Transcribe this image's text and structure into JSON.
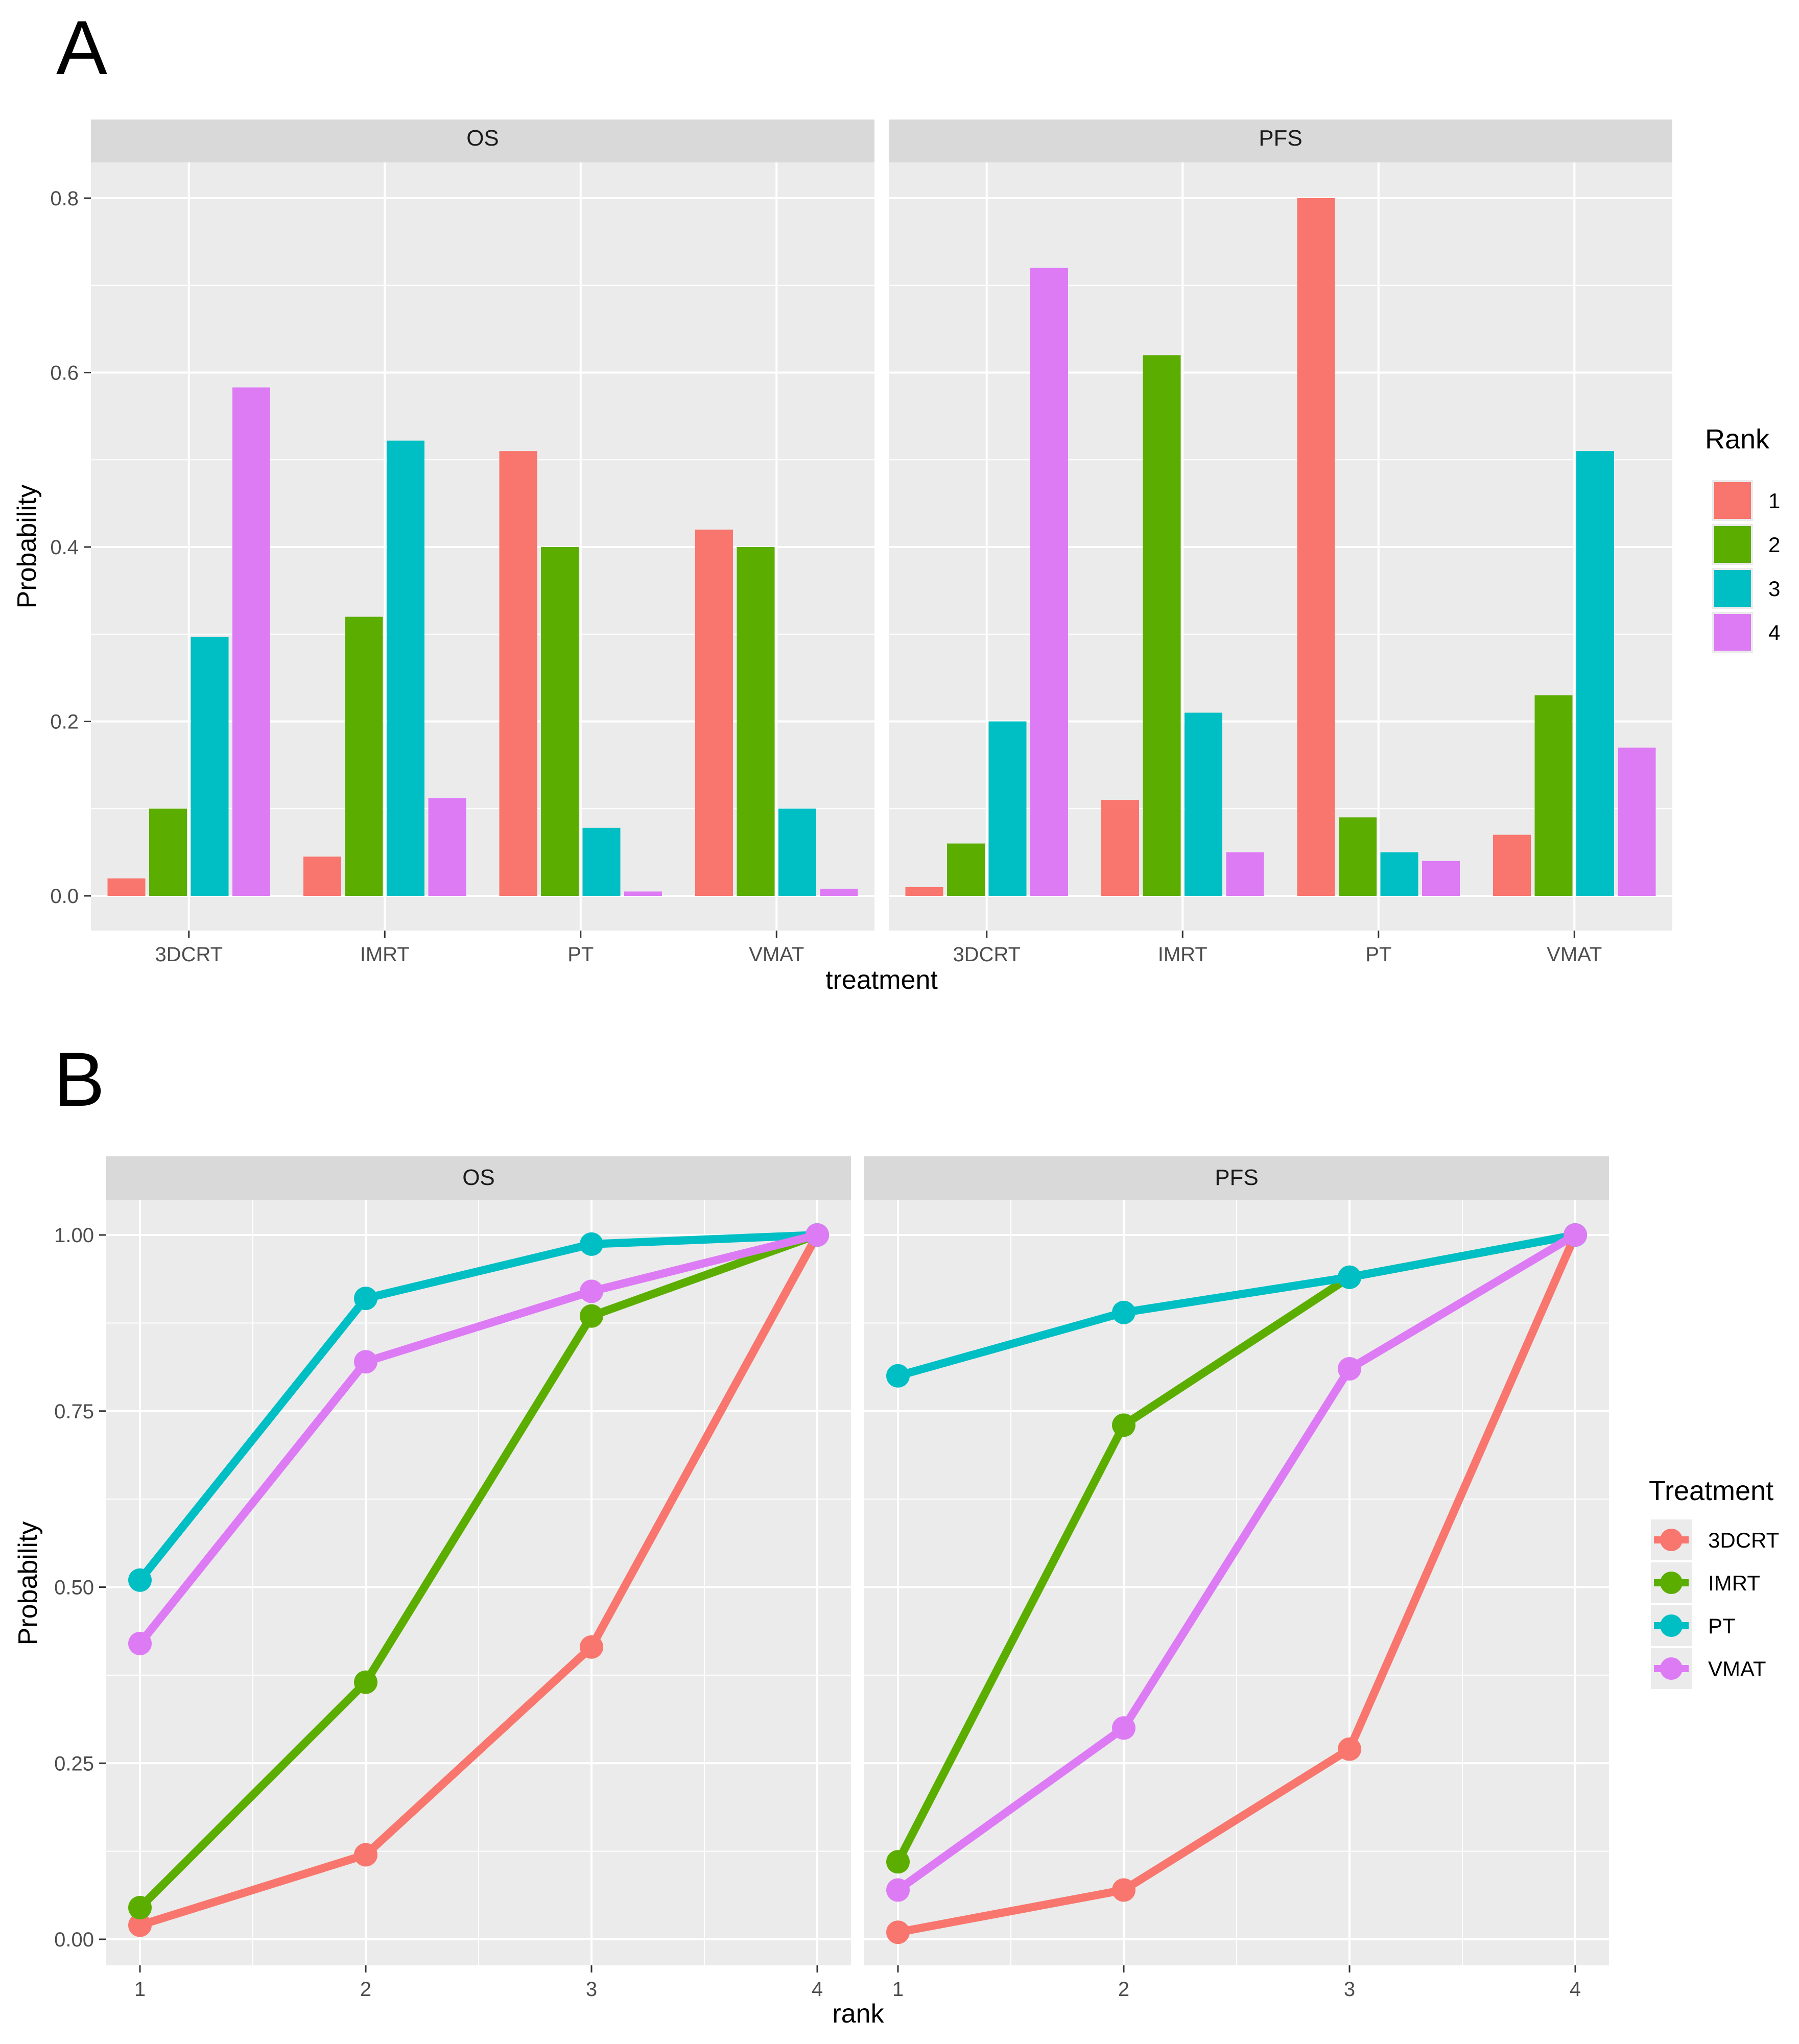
{
  "panels": {
    "A": {
      "letter": "A"
    },
    "B": {
      "letter": "B"
    }
  },
  "colors": {
    "rank_1": "#F8766D",
    "rank_2": "#5BAE00",
    "rank_3": "#00BFC4",
    "rank_4": "#DD7BF5",
    "3DCRT": "#F8766D",
    "IMRT": "#5BAE00",
    "PT": "#00BFC4",
    "VMAT": "#DD7BF5",
    "panel_bg": "#EBEBEB",
    "strip_bg": "#D9D9D9",
    "grid": "#FFFFFF"
  },
  "chart_data": [
    {
      "type": "bar",
      "panel": "A",
      "facets": [
        "OS",
        "PFS"
      ],
      "categories": [
        "3DCRT",
        "IMRT",
        "PT",
        "VMAT"
      ],
      "xlabel": "treatment",
      "ylabel": "Probability",
      "ylim": [
        0,
        0.84
      ],
      "yticks": [
        0.0,
        0.2,
        0.4,
        0.6,
        0.8
      ],
      "ytick_labels": [
        "0.0",
        "0.2",
        "0.4",
        "0.6",
        "0.8"
      ],
      "legend": {
        "title": "Rank",
        "labels": [
          "1",
          "2",
          "3",
          "4"
        ],
        "position": "right"
      },
      "series": {
        "OS": [
          {
            "name": "1",
            "values": [
              0.02,
              0.045,
              0.51,
              0.42
            ]
          },
          {
            "name": "2",
            "values": [
              0.1,
              0.32,
              0.4,
              0.4
            ]
          },
          {
            "name": "3",
            "values": [
              0.297,
              0.522,
              0.078,
              0.1
            ]
          },
          {
            "name": "4",
            "values": [
              0.583,
              0.112,
              0.005,
              0.008
            ]
          }
        ],
        "PFS": [
          {
            "name": "1",
            "values": [
              0.01,
              0.11,
              0.8,
              0.07
            ]
          },
          {
            "name": "2",
            "values": [
              0.06,
              0.62,
              0.09,
              0.23
            ]
          },
          {
            "name": "3",
            "values": [
              0.2,
              0.21,
              0.05,
              0.51
            ]
          },
          {
            "name": "4",
            "values": [
              0.72,
              0.05,
              0.04,
              0.17
            ]
          }
        ]
      }
    },
    {
      "type": "line",
      "panel": "B",
      "facets": [
        "OS",
        "PFS"
      ],
      "x": [
        1,
        2,
        3,
        4
      ],
      "xtick_labels": [
        "1",
        "2",
        "3",
        "4"
      ],
      "xlabel": "rank",
      "ylabel": "Probability",
      "ylim": [
        -0.04,
        1.05
      ],
      "yticks": [
        0.0,
        0.25,
        0.5,
        0.75,
        1.0
      ],
      "ytick_labels": [
        "0.00",
        "0.25",
        "0.50",
        "0.75",
        "1.00"
      ],
      "legend": {
        "title": "Treatment",
        "labels": [
          "3DCRT",
          "IMRT",
          "PT",
          "VMAT"
        ],
        "position": "right"
      },
      "series": {
        "OS": [
          {
            "name": "3DCRT",
            "values": [
              0.02,
              0.12,
              0.415,
              1.0
            ]
          },
          {
            "name": "IMRT",
            "values": [
              0.045,
              0.365,
              0.885,
              1.0
            ]
          },
          {
            "name": "PT",
            "values": [
              0.51,
              0.91,
              0.987,
              1.0
            ]
          },
          {
            "name": "VMAT",
            "values": [
              0.42,
              0.82,
              0.92,
              1.0
            ]
          }
        ],
        "PFS": [
          {
            "name": "3DCRT",
            "values": [
              0.01,
              0.07,
              0.27,
              1.0
            ]
          },
          {
            "name": "IMRT",
            "values": [
              0.11,
              0.73,
              0.94,
              1.0
            ]
          },
          {
            "name": "PT",
            "values": [
              0.8,
              0.89,
              0.94,
              1.0
            ]
          },
          {
            "name": "VMAT",
            "values": [
              0.07,
              0.3,
              0.81,
              1.0
            ]
          }
        ]
      }
    }
  ]
}
